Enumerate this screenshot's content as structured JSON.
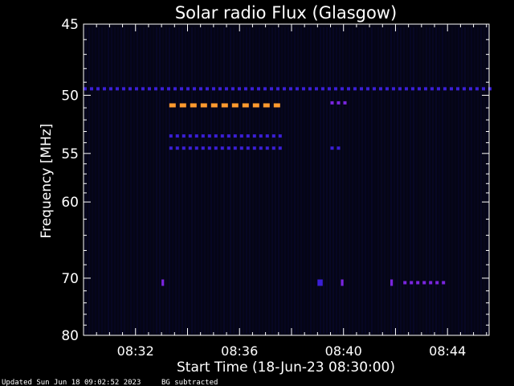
{
  "chart_data": {
    "type": "heatmap",
    "title": "Solar radio Flux (Glasgow)",
    "xlabel": "Start Time (18-Jun-23 08:30:00)",
    "ylabel": "Frequency [MHz]",
    "x_start_minutes": 0,
    "x_end_minutes": 15.6,
    "xlim": [
      "08:30:00",
      "08:45:36"
    ],
    "ylim": [
      45,
      80
    ],
    "y_tick_values": [
      45,
      50,
      55,
      60,
      70,
      80
    ],
    "y_tick_labels": [
      "45",
      "50",
      "55",
      "60",
      "70",
      "80"
    ],
    "x_tick_minutes": [
      2,
      6,
      10,
      14
    ],
    "x_tick_labels": [
      "08:32",
      "08:36",
      "08:40",
      "08:44"
    ],
    "background": "#000000",
    "colors": {
      "low": "#0a0a3a",
      "mid": "#3b1fd6",
      "purple": "#7a25e0",
      "high": "#ff9a2e",
      "axis": "#ffffff"
    },
    "features": [
      {
        "freq": 49.5,
        "t_start": 0,
        "t_end": 15.6,
        "level": "mid",
        "dashed": true
      },
      {
        "freq": 50.8,
        "t_start": 3.3,
        "t_end": 7.7,
        "level": "high",
        "dashed": true
      },
      {
        "freq": 53.4,
        "t_start": 3.3,
        "t_end": 7.7,
        "level": "mid",
        "dashed": true
      },
      {
        "freq": 54.5,
        "t_start": 3.3,
        "t_end": 7.7,
        "level": "mid",
        "dashed": true
      },
      {
        "freq": 50.6,
        "t_start": 9.5,
        "t_end": 10.1,
        "level": "purple",
        "dashed": true
      },
      {
        "freq": 54.5,
        "t_start": 9.5,
        "t_end": 9.9,
        "level": "mid",
        "dashed": true
      },
      {
        "freq": 70.7,
        "t_start": 12.3,
        "t_end": 14.0,
        "level": "purple",
        "dashed": true
      },
      {
        "freq": 70.7,
        "t_start": 3.0,
        "t_end": 3.1,
        "level": "purple",
        "dashed": false
      },
      {
        "freq": 70.7,
        "t_start": 9.0,
        "t_end": 9.2,
        "level": "mid",
        "dashed": false
      },
      {
        "freq": 70.7,
        "t_start": 9.9,
        "t_end": 10.0,
        "level": "purple",
        "dashed": false
      },
      {
        "freq": 70.7,
        "t_start": 11.8,
        "t_end": 11.9,
        "level": "purple",
        "dashed": false
      }
    ]
  },
  "footer": {
    "updated": "Updated Sun Jun 18 09:02:52 2023",
    "note": "BG subtracted"
  }
}
